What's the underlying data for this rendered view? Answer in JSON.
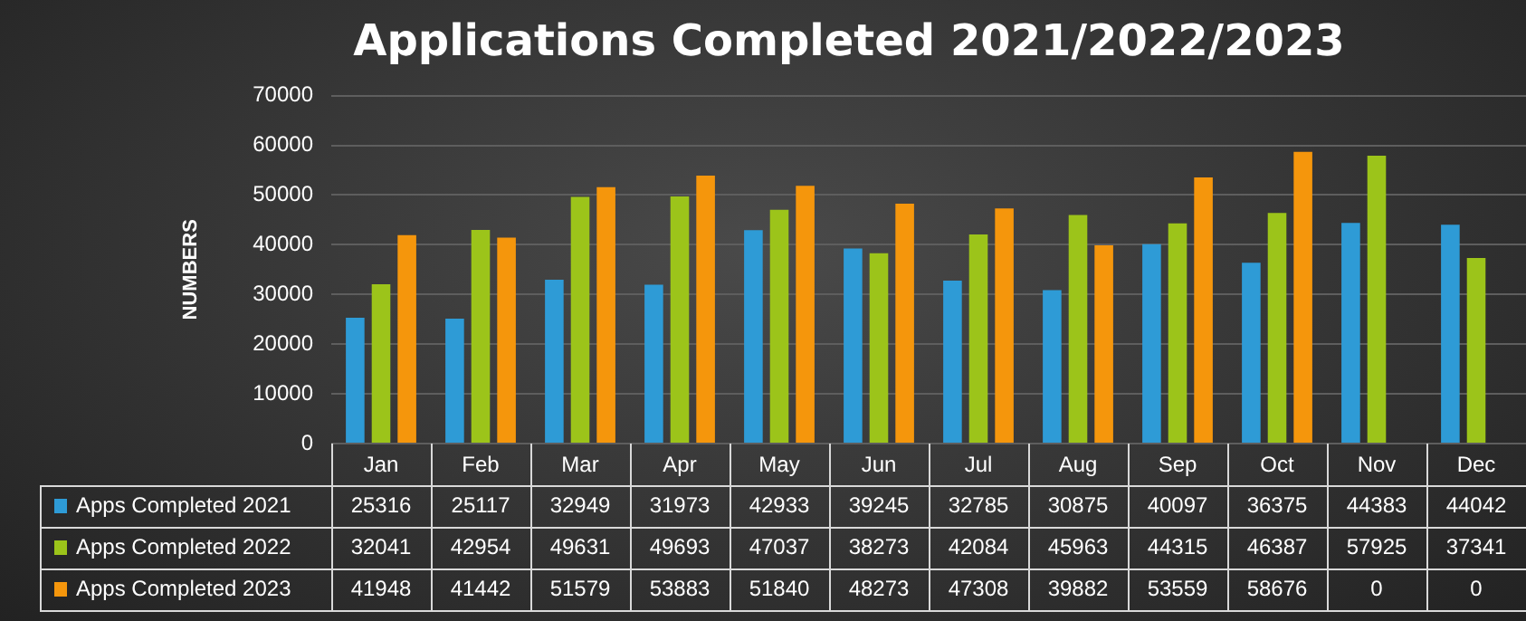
{
  "chart_data": {
    "type": "bar",
    "title": "Applications Completed 2021/2022/2023",
    "ylabel": "NUMBERS",
    "categories": [
      "Jan",
      "Feb",
      "Mar",
      "Apr",
      "May",
      "Jun",
      "Jul",
      "Aug",
      "Sep",
      "Oct",
      "Nov",
      "Dec"
    ],
    "series": [
      {
        "name": "Apps Completed 2021",
        "color": "#2e9bd6",
        "values": [
          25316,
          25117,
          32949,
          31973,
          42933,
          39245,
          32785,
          30875,
          40097,
          36375,
          44383,
          44042
        ]
      },
      {
        "name": "Apps Completed 2022",
        "color": "#9cc41a",
        "values": [
          32041,
          42954,
          49631,
          49693,
          47037,
          38273,
          42084,
          45963,
          44315,
          46387,
          57925,
          37341
        ]
      },
      {
        "name": "Apps Completed 2023",
        "color": "#f5960c",
        "values": [
          41948,
          41442,
          51579,
          53883,
          51840,
          48273,
          47308,
          39882,
          53559,
          58676,
          0,
          0
        ]
      }
    ],
    "ylim": [
      0,
      70000
    ],
    "yticks": [
      0,
      10000,
      20000,
      30000,
      40000,
      50000,
      60000,
      70000
    ],
    "grid": "y",
    "legend": "bottom left",
    "data_labels": true
  }
}
